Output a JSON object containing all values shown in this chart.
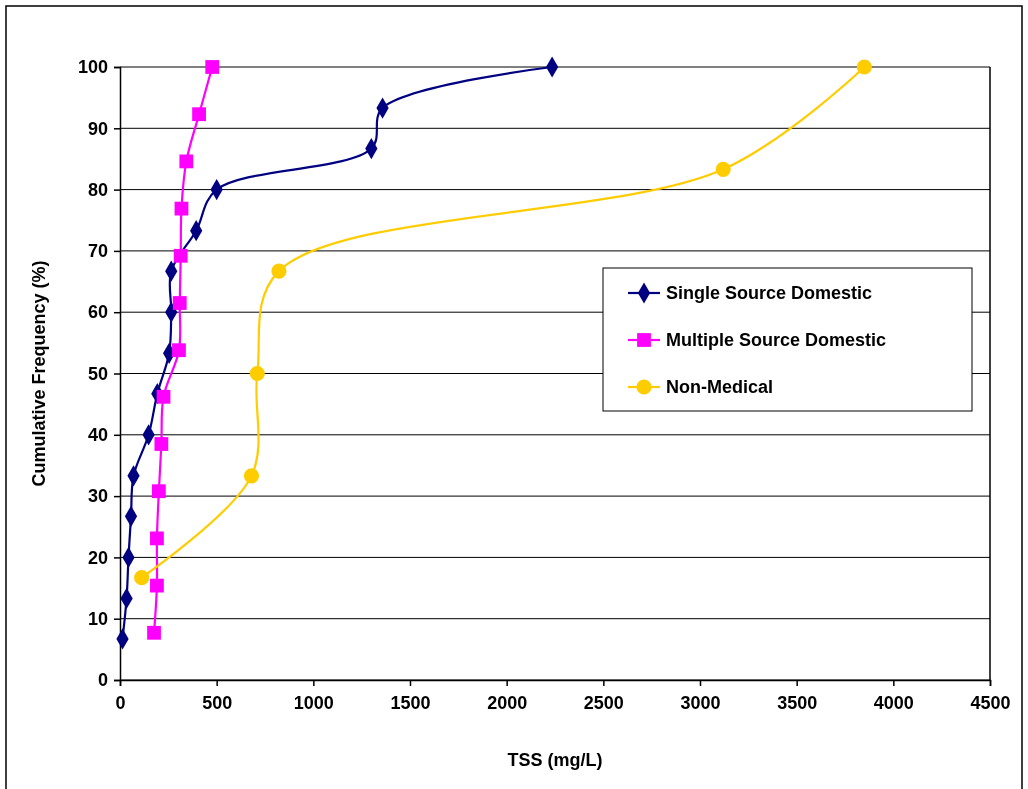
{
  "chart_data": {
    "type": "line",
    "xlabel": "TSS (mg/L)",
    "ylabel": "Cumulative Frequency (%)",
    "xlim": [
      0,
      4500
    ],
    "xticks": [
      0,
      500,
      1000,
      1500,
      2000,
      2500,
      3000,
      3500,
      4000,
      4500
    ],
    "ylim": [
      0,
      100
    ],
    "yticks": [
      0,
      10,
      20,
      30,
      40,
      50,
      60,
      70,
      80,
      90,
      100
    ],
    "grid": "y",
    "legend": "right",
    "line_style": "solid",
    "series": [
      {
        "name": "Single Source Domestic",
        "color": "#000080",
        "marker": "diamond",
        "x": [
          13,
          34,
          44,
          57,
          70,
          148,
          193,
          254,
          265,
          265,
          394,
          500,
          1300,
          1358,
          2235
        ],
        "values": [
          6.7,
          13.3,
          20,
          26.7,
          33.3,
          40,
          46.7,
          53.3,
          60,
          66.7,
          73.3,
          80,
          86.7,
          93.3,
          100
        ]
      },
      {
        "name": "Multiple Source Domestic",
        "color": "#ff00ff",
        "marker": "square",
        "x": [
          176,
          191,
          191,
          201,
          214,
          225,
          305,
          309,
          314,
          318,
          343,
          409,
          477
        ],
        "values": [
          7.7,
          15.4,
          23.1,
          30.8,
          38.5,
          46.2,
          53.8,
          61.5,
          69.2,
          76.9,
          84.6,
          92.3,
          100
        ]
      },
      {
        "name": "Non-Medical",
        "color": "#ffcc00",
        "marker": "circle",
        "x": [
          112,
          680,
          710,
          822,
          3120,
          3850
        ],
        "values": [
          16.7,
          33.3,
          50,
          66.7,
          83.3,
          100
        ]
      }
    ]
  }
}
